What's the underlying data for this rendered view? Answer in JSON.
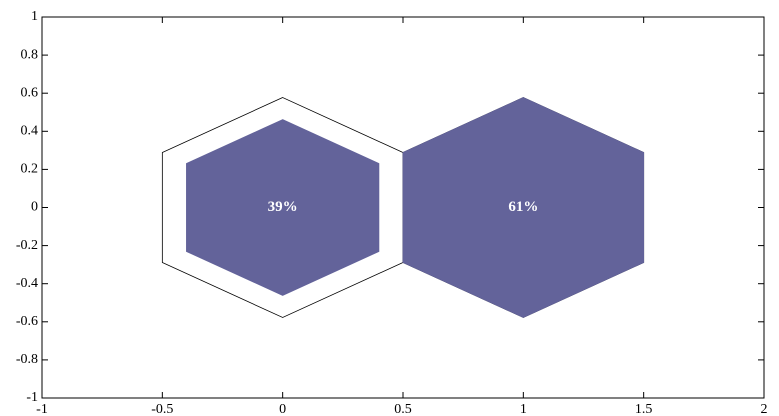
{
  "chart_data": {
    "type": "hexagon",
    "x": [
      0,
      1
    ],
    "y": [
      0,
      0
    ],
    "values": [
      39,
      61
    ],
    "value_labels": [
      "39%",
      "61%"
    ],
    "color": "#63639a",
    "xlim": [
      -1,
      2
    ],
    "xticks": [
      -1,
      -0.5,
      0,
      0.5,
      1,
      1.5,
      2
    ],
    "ylim": [
      -1,
      1
    ],
    "yticks": [
      -1,
      -0.8,
      -0.6,
      -0.4,
      -0.2,
      0,
      0.2,
      0.4,
      0.6,
      0.8,
      1
    ]
  }
}
